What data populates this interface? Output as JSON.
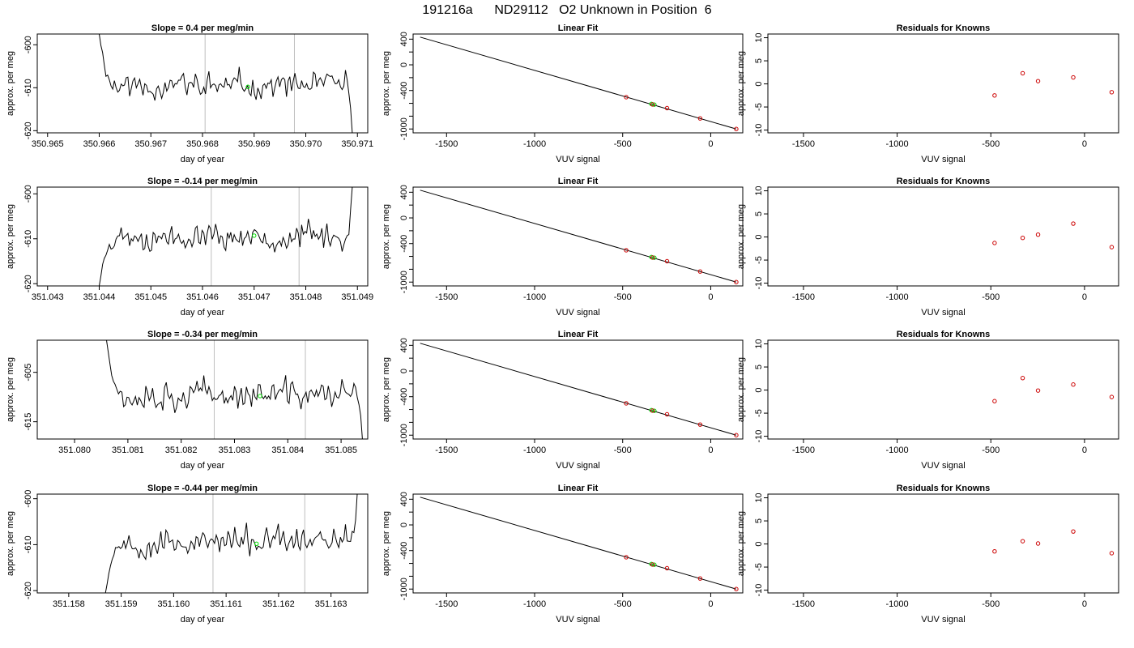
{
  "figure_title": "191216a      ND29112   O2 Unknown in Position  6",
  "colors": {
    "trace": "#000000",
    "marker_green": "#00dd00",
    "marker_red": "#cc0000",
    "vline": "#bebebe",
    "fit": "#000000"
  },
  "chart_data": [
    {
      "type": "line",
      "row": 0,
      "panel": "trace",
      "title": "Slope =  0.4  per meg/min",
      "xlabel": "day of year",
      "ylabel": "approx. per meg",
      "xlim": [
        350.9648,
        350.9712
      ],
      "ylim": [
        -620.5,
        -597.5
      ],
      "xticks": [
        350.965,
        350.966,
        350.967,
        350.968,
        350.969,
        350.97,
        350.971
      ],
      "xtick_labels": [
        "350.965",
        "350.966",
        "350.967",
        "350.968",
        "350.969",
        "350.970",
        "350.971"
      ],
      "yticks": [
        -620,
        -610,
        -600
      ],
      "ytick_labels": [
        "-620",
        "-610",
        "-600"
      ],
      "trace_start": 350.966,
      "trace_end": 350.9709,
      "plateau": -609.5,
      "start_level": -597.5,
      "end_level": -620.5,
      "vlines": [
        350.96805,
        350.96978
      ],
      "marker": {
        "x": 350.96888,
        "y": -609.8
      },
      "seed": 11
    },
    {
      "type": "line",
      "row": 1,
      "panel": "trace",
      "title": "Slope =  -0.14  per meg/min",
      "xlabel": "day of year",
      "ylabel": "approx. per meg",
      "xlim": [
        351.0428,
        351.0492
      ],
      "ylim": [
        -620.5,
        -598.5
      ],
      "xticks": [
        351.043,
        351.044,
        351.045,
        351.046,
        351.047,
        351.048,
        351.049
      ],
      "xtick_labels": [
        "351.043",
        "351.044",
        "351.045",
        "351.046",
        "351.047",
        "351.048",
        "351.049"
      ],
      "yticks": [
        -620,
        -610,
        -600
      ],
      "ytick_labels": [
        "-620",
        "-610",
        "-600"
      ],
      "trace_start": 351.044,
      "trace_end": 351.0489,
      "plateau": -609.5,
      "start_level": -620.5,
      "end_level": -598.5,
      "vlines": [
        351.04617,
        351.04787
      ],
      "marker": {
        "x": 351.047,
        "y": -609.3
      },
      "seed": 23
    },
    {
      "type": "line",
      "row": 2,
      "panel": "trace",
      "title": "Slope =  -0.34  per meg/min",
      "xlabel": "day of year",
      "ylabel": "approx. per meg",
      "xlim": [
        351.0793,
        351.0855
      ],
      "ylim": [
        -618.5,
        -598.5
      ],
      "xticks": [
        351.08,
        351.081,
        351.082,
        351.083,
        351.084,
        351.085
      ],
      "xtick_labels": [
        "351.080",
        "351.081",
        "351.082",
        "351.083",
        "351.084",
        "351.085"
      ],
      "yticks": [
        -615,
        -605
      ],
      "ytick_labels": [
        "-615",
        "-605"
      ],
      "trace_start": 351.0806,
      "trace_end": 351.0854,
      "plateau": -609.5,
      "start_level": -598.5,
      "end_level": -618.5,
      "vlines": [
        351.08262,
        351.08433
      ],
      "marker": {
        "x": 351.08348,
        "y": -609.8
      },
      "seed": 37
    },
    {
      "type": "line",
      "row": 3,
      "panel": "trace",
      "title": "Slope =  -0.44  per meg/min",
      "xlabel": "day of year",
      "ylabel": "approx. per meg",
      "xlim": [
        351.1574,
        351.1637
      ],
      "ylim": [
        -620.5,
        -599.0
      ],
      "xticks": [
        351.158,
        351.159,
        351.16,
        351.161,
        351.162,
        351.163
      ],
      "xtick_labels": [
        "351.158",
        "351.159",
        "351.160",
        "351.161",
        "351.162",
        "351.163"
      ],
      "yticks": [
        -620,
        -610,
        -600
      ],
      "ytick_labels": [
        "-620",
        "-610",
        "-600"
      ],
      "trace_start": 351.1587,
      "trace_end": 351.1635,
      "plateau": -609.5,
      "start_level": -620.5,
      "end_level": -599.0,
      "vlines": [
        351.16075,
        351.1625
      ],
      "marker": {
        "x": 351.16158,
        "y": -609.8
      },
      "seed": 53
    },
    {
      "type": "scatter",
      "row": 0,
      "panel": "fit",
      "title": "Linear Fit",
      "xlabel": "VUV signal",
      "ylabel": "approx. per meg",
      "xlim": [
        1690,
        -182
      ],
      "ylim": [
        -1060,
        480
      ],
      "xticks": [
        1500,
        1000,
        500,
        0
      ],
      "xtick_labels": [
        "-1500",
        "-1000",
        "-500",
        "0"
      ],
      "yticks": [
        400,
        200,
        0,
        -200,
        -400,
        -600,
        -800,
        -1000
      ],
      "ytick_labels": [
        "400",
        "",
        "0",
        "",
        "-400",
        "",
        "",
        "-1000"
      ],
      "fit_line": {
        "x": [
          1650,
          -145
        ],
        "y": [
          432,
          -1000
        ]
      },
      "points_red": {
        "x": [
          480,
          330,
          248,
          60,
          -145
        ],
        "y": [
          -504,
          -618,
          -675,
          -835,
          -1000
        ]
      },
      "points_green": {
        "x": [
          337,
          320
        ],
        "y": [
          -610,
          -620
        ]
      }
    },
    {
      "type": "scatter",
      "row": 1,
      "panel": "fit",
      "title": "Linear Fit",
      "xlabel": "VUV signal",
      "ylabel": "approx. per meg",
      "xlim": [
        1690,
        -182
      ],
      "ylim": [
        -1060,
        480
      ],
      "xticks": [
        1500,
        1000,
        500,
        0
      ],
      "xtick_labels": [
        "-1500",
        "-1000",
        "-500",
        "0"
      ],
      "yticks": [
        400,
        200,
        0,
        -200,
        -400,
        -600,
        -800,
        -1000
      ],
      "ytick_labels": [
        "400",
        "",
        "0",
        "",
        "-400",
        "",
        "",
        "-1000"
      ],
      "fit_line": {
        "x": [
          1650,
          -145
        ],
        "y": [
          432,
          -1000
        ]
      },
      "points_red": {
        "x": [
          480,
          330,
          248,
          60,
          -145
        ],
        "y": [
          -504,
          -618,
          -675,
          -835,
          -1000
        ]
      },
      "points_green": {
        "x": [
          337,
          320
        ],
        "y": [
          -610,
          -620
        ]
      }
    },
    {
      "type": "scatter",
      "row": 2,
      "panel": "fit",
      "title": "Linear Fit",
      "xlabel": "VUV signal",
      "ylabel": "approx. per meg",
      "xlim": [
        1690,
        -182
      ],
      "ylim": [
        -1060,
        480
      ],
      "xticks": [
        1500,
        1000,
        500,
        0
      ],
      "xtick_labels": [
        "-1500",
        "-1000",
        "-500",
        "0"
      ],
      "yticks": [
        400,
        200,
        0,
        -200,
        -400,
        -600,
        -800,
        -1000
      ],
      "ytick_labels": [
        "400",
        "",
        "0",
        "",
        "-400",
        "",
        "",
        "-1000"
      ],
      "fit_line": {
        "x": [
          1650,
          -145
        ],
        "y": [
          432,
          -1000
        ]
      },
      "points_red": {
        "x": [
          480,
          330,
          248,
          60,
          -145
        ],
        "y": [
          -504,
          -618,
          -675,
          -835,
          -1000
        ]
      },
      "points_green": {
        "x": [
          337,
          320
        ],
        "y": [
          -610,
          -620
        ]
      }
    },
    {
      "type": "scatter",
      "row": 3,
      "panel": "fit",
      "title": "Linear Fit",
      "xlabel": "VUV signal",
      "ylabel": "approx. per meg",
      "xlim": [
        1690,
        -182
      ],
      "ylim": [
        -1060,
        480
      ],
      "xticks": [
        1500,
        1000,
        500,
        0
      ],
      "xtick_labels": [
        "-1500",
        "-1000",
        "-500",
        "0"
      ],
      "yticks": [
        400,
        200,
        0,
        -200,
        -400,
        -600,
        -800,
        -1000
      ],
      "ytick_labels": [
        "400",
        "",
        "0",
        "",
        "-400",
        "",
        "",
        "-1000"
      ],
      "fit_line": {
        "x": [
          1650,
          -145
        ],
        "y": [
          432,
          -1000
        ]
      },
      "points_red": {
        "x": [
          480,
          330,
          248,
          60,
          -145
        ],
        "y": [
          -504,
          -618,
          -675,
          -835,
          -1000
        ]
      },
      "points_green": {
        "x": [
          337,
          320
        ],
        "y": [
          -610,
          -620
        ]
      }
    },
    {
      "type": "scatter",
      "row": 0,
      "panel": "resid",
      "title": "Residuals for Knowns",
      "xlabel": "VUV signal",
      "ylabel": "approx. per meg",
      "xlim": [
        1690,
        -182
      ],
      "ylim": [
        -10.6,
        10.8
      ],
      "xticks": [
        1500,
        1000,
        500,
        0
      ],
      "xtick_labels": [
        "-1500",
        "-1000",
        "-500",
        "0"
      ],
      "yticks": [
        -10,
        -5,
        0,
        5,
        10
      ],
      "ytick_labels": [
        "-10",
        "-5",
        "0",
        "5",
        "10"
      ],
      "points_red": {
        "x": [
          480,
          330,
          248,
          60,
          -145
        ],
        "y": [
          -2.5,
          2.3,
          0.6,
          1.4,
          -1.8
        ]
      }
    },
    {
      "type": "scatter",
      "row": 1,
      "panel": "resid",
      "title": "Residuals for Knowns",
      "xlabel": "VUV signal",
      "ylabel": "approx. per meg",
      "xlim": [
        1690,
        -182
      ],
      "ylim": [
        -10.6,
        10.8
      ],
      "xticks": [
        1500,
        1000,
        500,
        0
      ],
      "xtick_labels": [
        "-1500",
        "-1000",
        "-500",
        "0"
      ],
      "yticks": [
        -10,
        -5,
        0,
        5,
        10
      ],
      "ytick_labels": [
        "-10",
        "-5",
        "0",
        "5",
        "10"
      ],
      "points_red": {
        "x": [
          480,
          330,
          248,
          60,
          -145
        ],
        "y": [
          -1.3,
          -0.2,
          0.5,
          2.9,
          -2.2
        ]
      }
    },
    {
      "type": "scatter",
      "row": 2,
      "panel": "resid",
      "title": "Residuals for Knowns",
      "xlabel": "VUV signal",
      "ylabel": "approx. per meg",
      "xlim": [
        1690,
        -182
      ],
      "ylim": [
        -10.6,
        10.8
      ],
      "xticks": [
        1500,
        1000,
        500,
        0
      ],
      "xtick_labels": [
        "-1500",
        "-1000",
        "-500",
        "0"
      ],
      "yticks": [
        -10,
        -5,
        0,
        5,
        10
      ],
      "ytick_labels": [
        "-10",
        "-5",
        "0",
        "5",
        "10"
      ],
      "points_red": {
        "x": [
          480,
          330,
          248,
          60,
          -145
        ],
        "y": [
          -2.4,
          2.6,
          -0.1,
          1.2,
          -1.5
        ]
      }
    },
    {
      "type": "scatter",
      "row": 3,
      "panel": "resid",
      "title": "Residuals for Knowns",
      "xlabel": "VUV signal",
      "ylabel": "approx. per meg",
      "xlim": [
        1690,
        -182
      ],
      "ylim": [
        -10.6,
        10.8
      ],
      "xticks": [
        1500,
        1000,
        500,
        0
      ],
      "xtick_labels": [
        "-1500",
        "-1000",
        "-500",
        "0"
      ],
      "yticks": [
        -10,
        -5,
        0,
        5,
        10
      ],
      "ytick_labels": [
        "-10",
        "-5",
        "0",
        "5",
        "10"
      ],
      "points_red": {
        "x": [
          480,
          330,
          248,
          60,
          -145
        ],
        "y": [
          -1.6,
          0.6,
          0.1,
          2.7,
          -2.0
        ]
      }
    }
  ]
}
